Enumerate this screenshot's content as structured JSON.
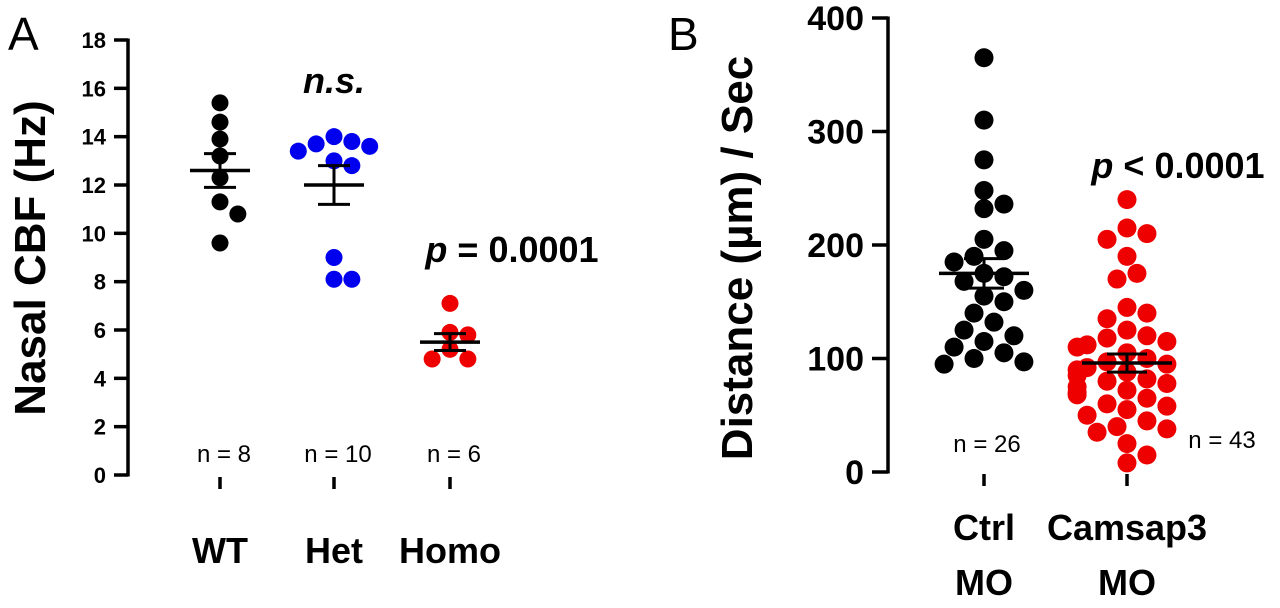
{
  "chart_data": [
    {
      "panel": "A",
      "type": "scatter",
      "ylabel": "Nasal CBF (Hz)",
      "ylim": [
        0,
        18
      ],
      "yticks": [
        0,
        2,
        4,
        6,
        8,
        10,
        12,
        14,
        16,
        18
      ],
      "categories": [
        "WT",
        "Het",
        "Homo"
      ],
      "groups": [
        {
          "category": "WT",
          "color": "#000000",
          "n_label": "n = 8",
          "annotation": "",
          "mean": 12.6,
          "sem": 0.7,
          "values": [
            15.4,
            14.6,
            13.9,
            13.2,
            12.3,
            11.3,
            10.8,
            9.6
          ]
        },
        {
          "category": "Het",
          "color": "#0000ee",
          "n_label": "n = 10",
          "annotation": "n.s.",
          "mean": 12.0,
          "sem": 0.8,
          "values": [
            14.0,
            13.8,
            13.7,
            13.6,
            13.4,
            13.0,
            12.8,
            9.0,
            8.1,
            8.1
          ]
        },
        {
          "category": "Homo",
          "color": "#ee0000",
          "n_label": "n = 6",
          "annotation_prefix": "p",
          "annotation": "= 0.0001",
          "mean": 5.5,
          "sem": 0.35,
          "values": [
            7.1,
            5.9,
            5.8,
            5.2,
            4.8,
            4.8
          ]
        }
      ]
    },
    {
      "panel": "B",
      "type": "scatter",
      "ylabel": "Distance (µm) / Sec",
      "ylim": [
        0,
        400
      ],
      "yticks": [
        0,
        100,
        200,
        300,
        400
      ],
      "categories": [
        "Ctrl MO",
        "Camsap3 MO"
      ],
      "category_lines": [
        [
          "Ctrl",
          "MO"
        ],
        [
          "Camsap3",
          "MO"
        ]
      ],
      "groups": [
        {
          "category": "Ctrl MO",
          "color": "#000000",
          "n_label": "n = 26",
          "annotation": "",
          "mean": 175,
          "sem": 13,
          "values": [
            365,
            310,
            275,
            248,
            236,
            232,
            205,
            195,
            190,
            185,
            175,
            172,
            168,
            160,
            155,
            150,
            140,
            132,
            125,
            120,
            115,
            110,
            105,
            100,
            97,
            95
          ]
        },
        {
          "category": "Camsap3 MO",
          "color": "#ee0000",
          "n_label": "n = 43",
          "annotation_prefix": "p",
          "annotation": "< 0.0001",
          "mean": 96,
          "sem": 8,
          "values": [
            240,
            215,
            210,
            205,
            190,
            175,
            170,
            145,
            140,
            135,
            125,
            120,
            118,
            115,
            112,
            110,
            105,
            100,
            97,
            95,
            92,
            90,
            88,
            85,
            82,
            80,
            78,
            75,
            72,
            70,
            68,
            65,
            60,
            58,
            55,
            50,
            45,
            40,
            38,
            35,
            25,
            15,
            8
          ]
        }
      ]
    }
  ]
}
